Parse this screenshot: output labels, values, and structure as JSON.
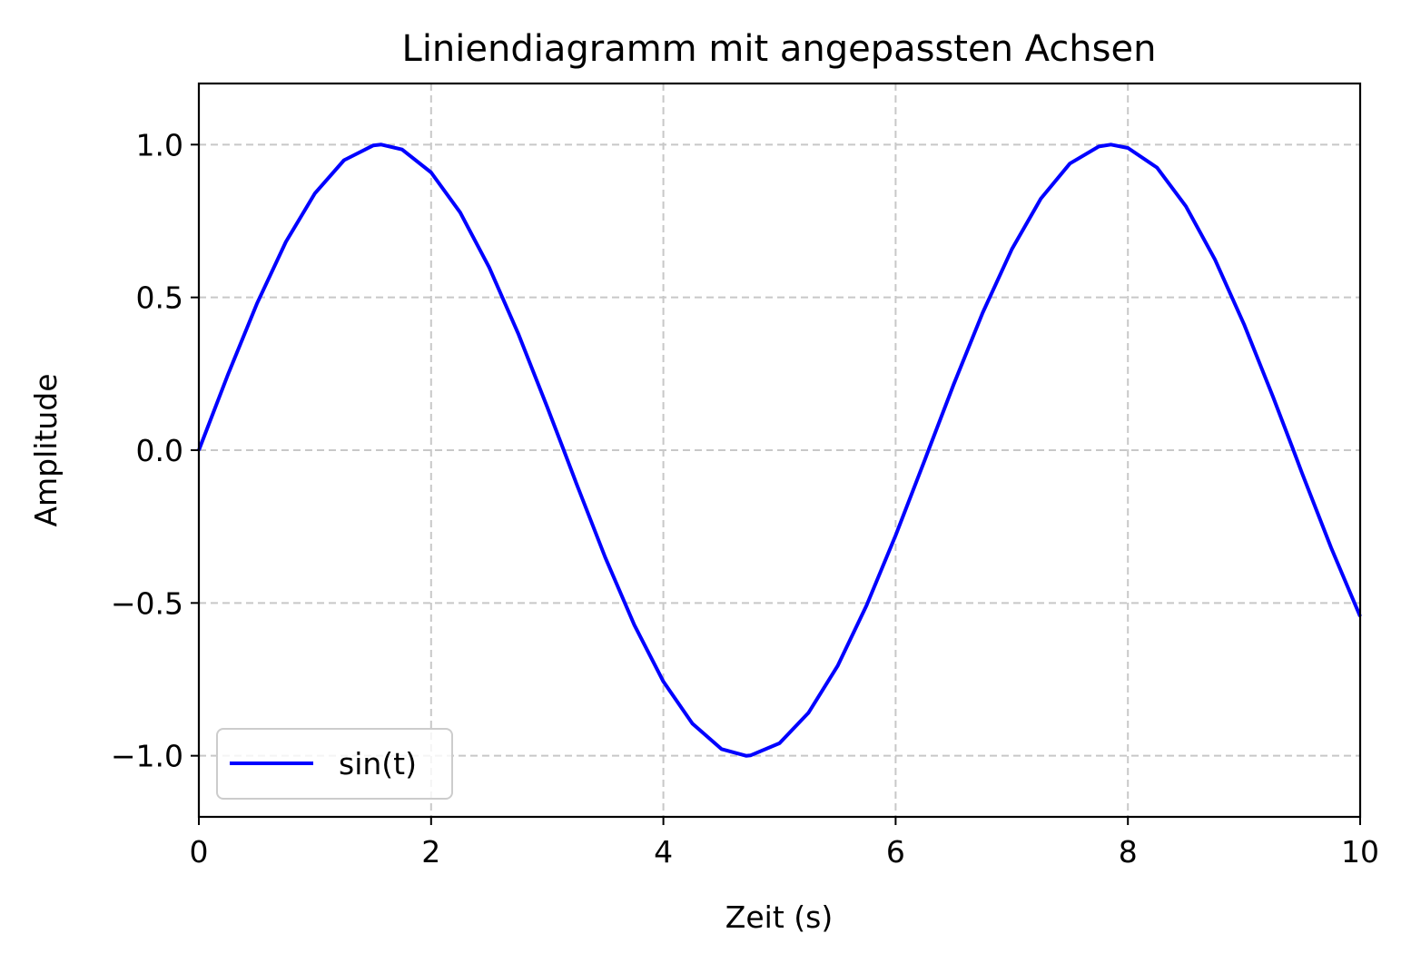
{
  "chart_data": {
    "type": "line",
    "title": "Liniendiagramm mit angepassten Achsen",
    "xlabel": "Zeit (s)",
    "ylabel": "Amplitude",
    "xlim": [
      0,
      10
    ],
    "ylim": [
      -1.2,
      1.2
    ],
    "xticks": [
      0,
      2,
      4,
      6,
      8,
      10
    ],
    "xtick_labels": [
      "0",
      "2",
      "4",
      "6",
      "8",
      "10"
    ],
    "yticks": [
      -1.0,
      -0.5,
      0.0,
      0.5,
      1.0
    ],
    "ytick_labels": [
      "−1.0",
      "−0.5",
      "0.0",
      "0.5",
      "1.0"
    ],
    "grid": true,
    "grid_style": "dashed",
    "legend_position": "lower left",
    "series": [
      {
        "name": "sin(t)",
        "color": "#0000ff",
        "x": [
          0,
          0.25,
          0.5,
          0.75,
          1,
          1.25,
          1.5,
          1.571,
          1.75,
          2,
          2.25,
          2.5,
          2.75,
          3,
          3.142,
          3.25,
          3.5,
          3.75,
          4,
          4.25,
          4.5,
          4.712,
          4.75,
          5,
          5.25,
          5.5,
          5.75,
          6,
          6.25,
          6.283,
          6.5,
          6.75,
          7,
          7.25,
          7.5,
          7.75,
          7.854,
          8,
          8.25,
          8.5,
          8.75,
          9,
          9.25,
          9.425,
          9.5,
          9.75,
          10
        ],
        "y": [
          0,
          0.247,
          0.479,
          0.682,
          0.841,
          0.949,
          0.997,
          1.0,
          0.984,
          0.909,
          0.778,
          0.598,
          0.382,
          0.141,
          0.0,
          -0.108,
          -0.351,
          -0.572,
          -0.757,
          -0.895,
          -0.978,
          -1.0,
          -0.999,
          -0.959,
          -0.859,
          -0.706,
          -0.508,
          -0.279,
          -0.033,
          0.0,
          0.215,
          0.45,
          0.657,
          0.823,
          0.938,
          0.994,
          1.0,
          0.989,
          0.925,
          0.798,
          0.624,
          0.412,
          0.174,
          0.0,
          -0.075,
          -0.319,
          -0.544
        ]
      }
    ]
  }
}
